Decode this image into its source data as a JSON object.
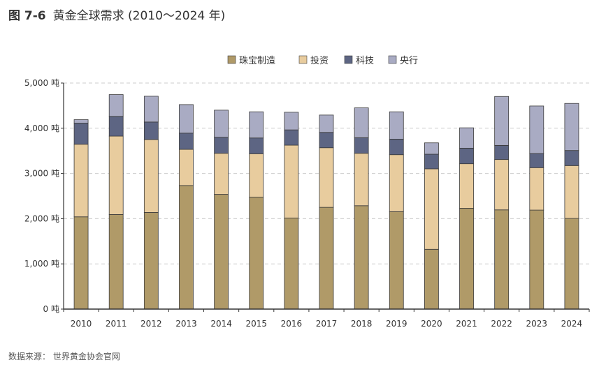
{
  "chart_data": {
    "type": "bar",
    "stacked": true,
    "figure_label": "图 7-6",
    "title": "黄金全球需求 (2010～2024 年)",
    "xlabel": "",
    "ylabel": "",
    "ylim": [
      0,
      5000
    ],
    "yticks": [
      0,
      1000,
      2000,
      3000,
      4000,
      5000
    ],
    "ytick_labels": [
      "0 吨",
      "1,000 吨",
      "2,000 吨",
      "3,000 吨",
      "4,000 吨",
      "5,000 吨"
    ],
    "grid": true,
    "legend_position": "top-right",
    "categories": [
      "2010",
      "2011",
      "2012",
      "2013",
      "2014",
      "2015",
      "2016",
      "2017",
      "2018",
      "2019",
      "2020",
      "2021",
      "2022",
      "2023",
      "2024"
    ],
    "series": [
      {
        "name": "珠宝制造",
        "color": "#b09a68",
        "values": [
          2041,
          2092,
          2138,
          2733,
          2538,
          2477,
          2015,
          2251,
          2287,
          2154,
          1323,
          2231,
          2195,
          2190,
          2005
        ]
      },
      {
        "name": "投资",
        "color": "#e8cc9e",
        "values": [
          1605,
          1734,
          1611,
          800,
          908,
          959,
          1611,
          1318,
          1159,
          1261,
          1780,
          984,
          1113,
          938,
          1169
        ]
      },
      {
        "name": "科技",
        "color": "#5d6583",
        "values": [
          467,
          436,
          389,
          359,
          354,
          349,
          338,
          339,
          344,
          344,
          323,
          344,
          313,
          313,
          334
        ]
      },
      {
        "name": "央行",
        "color": "#a9abc3",
        "values": [
          77,
          482,
          570,
          631,
          600,
          579,
          390,
          384,
          661,
          605,
          251,
          451,
          1082,
          1051,
          1041
        ]
      }
    ],
    "source": "数据来源：  世界黄金协会官网"
  }
}
